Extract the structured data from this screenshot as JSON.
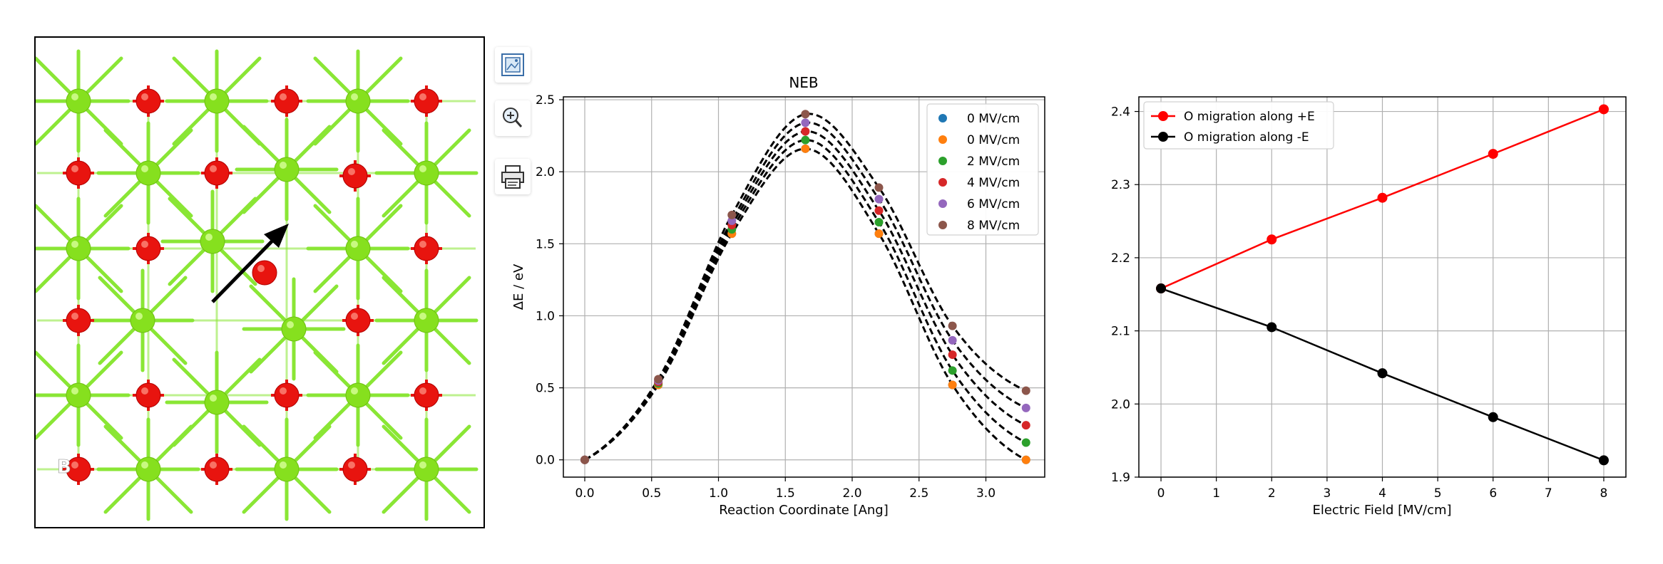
{
  "structure": {
    "site_label": "B",
    "colors": {
      "green_atom": "#86e01e",
      "red_atom": "#e8140f",
      "bond": "#8ae635",
      "arrow": "#000000"
    }
  },
  "toolbar": {
    "items": [
      {
        "name": "image-view-button",
        "icon": "image-frame-icon"
      },
      {
        "name": "zoom-button",
        "icon": "zoom-in-icon"
      },
      {
        "name": "print-button",
        "icon": "printer-icon"
      }
    ]
  },
  "chart_data": [
    {
      "type": "line",
      "title": "NEB",
      "xlabel": "Reaction Coordinate [Ang]",
      "ylabel": "ΔE / eV",
      "xlim": [
        -0.16,
        3.44
      ],
      "ylim": [
        -0.12,
        2.52
      ],
      "xticks": [
        0.0,
        0.5,
        1.0,
        1.5,
        2.0,
        2.5,
        3.0
      ],
      "yticks": [
        0.0,
        0.5,
        1.0,
        1.5,
        2.0,
        2.5
      ],
      "grid": true,
      "legend_position": "top-right",
      "x": [
        0.0,
        0.55,
        1.1,
        1.65,
        2.2,
        2.75,
        3.3
      ],
      "curve_style": "dashed black",
      "series": [
        {
          "name": "0 MV/cm",
          "color": "#1f77b4",
          "values": [
            0.0,
            0.52,
            1.57,
            2.16,
            1.57,
            0.52,
            0.0
          ]
        },
        {
          "name": "0 MV/cm",
          "color": "#ff7f0e",
          "values": [
            0.0,
            0.52,
            1.57,
            2.16,
            1.57,
            0.52,
            0.0
          ]
        },
        {
          "name": "2 MV/cm",
          "color": "#2ca02c",
          "values": [
            0.0,
            0.53,
            1.6,
            2.22,
            1.65,
            0.62,
            0.12
          ]
        },
        {
          "name": "4 MV/cm",
          "color": "#d62728",
          "values": [
            0.0,
            0.54,
            1.63,
            2.28,
            1.73,
            0.73,
            0.24
          ]
        },
        {
          "name": "6 MV/cm",
          "color": "#9467bd",
          "values": [
            0.0,
            0.55,
            1.66,
            2.34,
            1.81,
            0.83,
            0.36
          ]
        },
        {
          "name": "8 MV/cm",
          "color": "#8c564b",
          "values": [
            0.0,
            0.56,
            1.7,
            2.4,
            1.89,
            0.93,
            0.48
          ]
        }
      ]
    },
    {
      "type": "line",
      "title": "",
      "xlabel": "Electric Field [MV/cm]",
      "ylabel": "",
      "xlim": [
        -0.4,
        8.4
      ],
      "ylim": [
        1.9,
        2.42
      ],
      "xticks": [
        0,
        1,
        2,
        3,
        4,
        5,
        6,
        7,
        8
      ],
      "yticks": [
        1.9,
        2.0,
        2.1,
        2.2,
        2.3,
        2.4
      ],
      "grid": true,
      "legend_position": "top-left",
      "x": [
        0,
        2,
        4,
        6,
        8
      ],
      "series": [
        {
          "name": "O migration along +E",
          "color": "#ff0000",
          "values": [
            2.158,
            2.225,
            2.282,
            2.342,
            2.403
          ]
        },
        {
          "name": "O migration along -E",
          "color": "#000000",
          "values": [
            2.158,
            2.105,
            2.042,
            1.982,
            1.923
          ]
        }
      ]
    }
  ]
}
